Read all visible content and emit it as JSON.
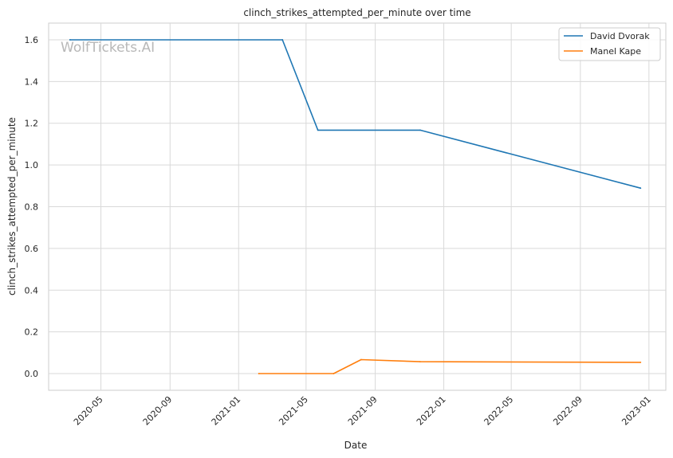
{
  "watermark": "WolfTickets.AI",
  "chart_data": {
    "type": "line",
    "title": "clinch_strikes_attempted_per_minute over time",
    "xlabel": "Date",
    "ylabel": "clinch_strikes_attempted_per_minute",
    "x_ticks": [
      "2020-05",
      "2020-09",
      "2021-01",
      "2021-05",
      "2021-09",
      "2022-01",
      "2022-05",
      "2022-09",
      "2023-01"
    ],
    "y_ticks": [
      "0.0",
      "0.2",
      "0.4",
      "0.6",
      "0.8",
      "1.0",
      "1.2",
      "1.4",
      "1.6"
    ],
    "xlim": [
      "2020-01-29",
      "2023-01-31"
    ],
    "ylim": [
      -0.08,
      1.68
    ],
    "grid": true,
    "legend_position": "top-right",
    "series": [
      {
        "name": "David Dvorak",
        "color": "#1f77b4",
        "points": [
          {
            "x": "2020-03-07",
            "y": 1.6
          },
          {
            "x": "2021-03-20",
            "y": 1.6
          },
          {
            "x": "2021-05-22",
            "y": 1.167
          },
          {
            "x": "2021-11-20",
            "y": 1.167
          },
          {
            "x": "2022-12-17",
            "y": 0.889
          }
        ]
      },
      {
        "name": "Manel Kape",
        "color": "#ff7f0e",
        "points": [
          {
            "x": "2021-02-06",
            "y": 0.0
          },
          {
            "x": "2021-06-19",
            "y": 0.0
          },
          {
            "x": "2021-08-07",
            "y": 0.067
          },
          {
            "x": "2021-11-20",
            "y": 0.057
          },
          {
            "x": "2022-12-17",
            "y": 0.054
          }
        ]
      }
    ]
  }
}
